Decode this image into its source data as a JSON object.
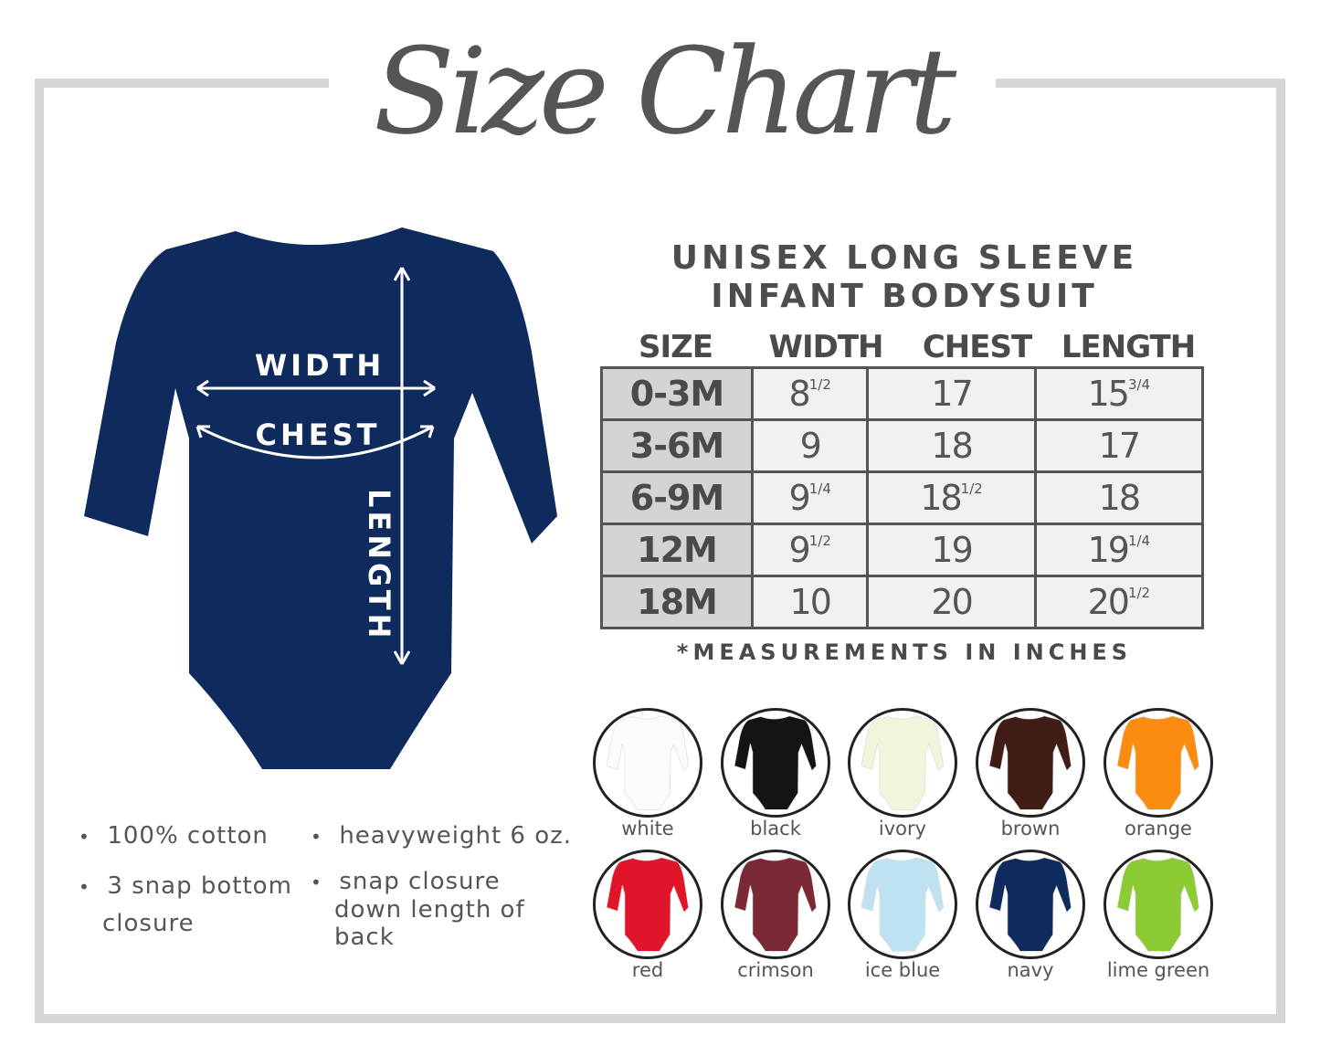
{
  "title": "Size Chart",
  "product": {
    "line1": "UNISEX LONG SLEEVE",
    "line2": "INFANT BODYSUIT",
    "color": "#0f2a5c"
  },
  "diagram": {
    "width": "WIDTH",
    "chest": "CHEST",
    "length": "LENGTH"
  },
  "table": {
    "headers": [
      "SIZE",
      "WIDTH",
      "CHEST",
      "LENGTH"
    ],
    "rows": [
      {
        "size": "0-3M",
        "width": "8",
        "width_frac": "1/2",
        "chest": "17",
        "chest_frac": "",
        "length": "15",
        "length_frac": "3/4"
      },
      {
        "size": "3-6M",
        "width": "9",
        "width_frac": "",
        "chest": "18",
        "chest_frac": "",
        "length": "17",
        "length_frac": ""
      },
      {
        "size": "6-9M",
        "width": "9",
        "width_frac": "1/4",
        "chest": "18",
        "chest_frac": "1/2",
        "length": "18",
        "length_frac": ""
      },
      {
        "size": "12M",
        "width": "9",
        "width_frac": "1/2",
        "chest": "19",
        "chest_frac": "",
        "length": "19",
        "length_frac": "1/4"
      },
      {
        "size": "18M",
        "width": "10",
        "width_frac": "",
        "chest": "20",
        "chest_frac": "",
        "length": "20",
        "length_frac": "1/2"
      }
    ],
    "note": "*MEASUREMENTS IN INCHES"
  },
  "features": [
    "100% cotton",
    "heavyweight 6 oz.",
    "3 snap bottom closure",
    "snap closure down length of back"
  ],
  "colors": [
    {
      "name": "white",
      "hex": "#fbfbfb"
    },
    {
      "name": "black",
      "hex": "#141414"
    },
    {
      "name": "ivory",
      "hex": "#f2f4dc"
    },
    {
      "name": "brown",
      "hex": "#3f1d14"
    },
    {
      "name": "orange",
      "hex": "#fb8c0f"
    },
    {
      "name": "red",
      "hex": "#e0152a"
    },
    {
      "name": "crimson",
      "hex": "#7a2935"
    },
    {
      "name": "ice blue",
      "hex": "#bfe2f2"
    },
    {
      "name": "navy",
      "hex": "#0f2a5c"
    },
    {
      "name": "lime green",
      "hex": "#8dcb35"
    }
  ]
}
